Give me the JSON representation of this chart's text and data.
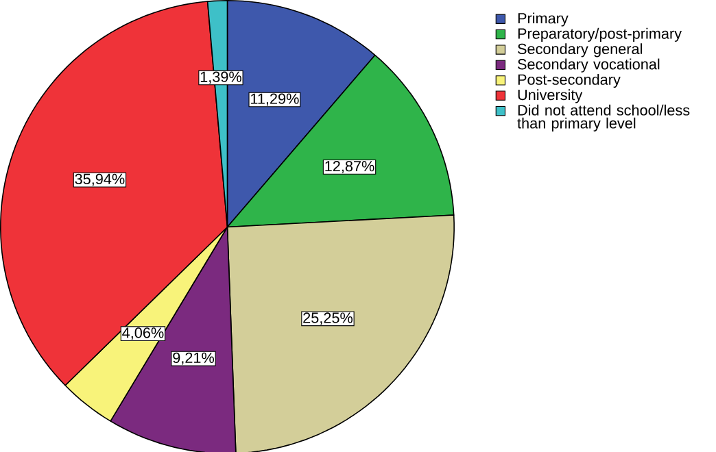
{
  "chart_data": {
    "type": "pie",
    "categories": [
      "Primary",
      "Preparatory/post-primary",
      "Secondary general",
      "Secondary vocational",
      "Post-secondary",
      "University",
      "Did not attend school/less than primary level"
    ],
    "values": [
      11.29,
      12.87,
      25.25,
      9.21,
      4.06,
      35.94,
      1.39
    ],
    "value_labels": [
      "11,29%",
      "12,87%",
      "25,25%",
      "9,21%",
      "4,06%",
      "35,94%",
      "1,39%"
    ],
    "colors": [
      "#3e58ac",
      "#2fb44a",
      "#d3ce99",
      "#7b2a7f",
      "#f8f37a",
      "#ef3339",
      "#3ec0c8"
    ],
    "legend": "right"
  }
}
